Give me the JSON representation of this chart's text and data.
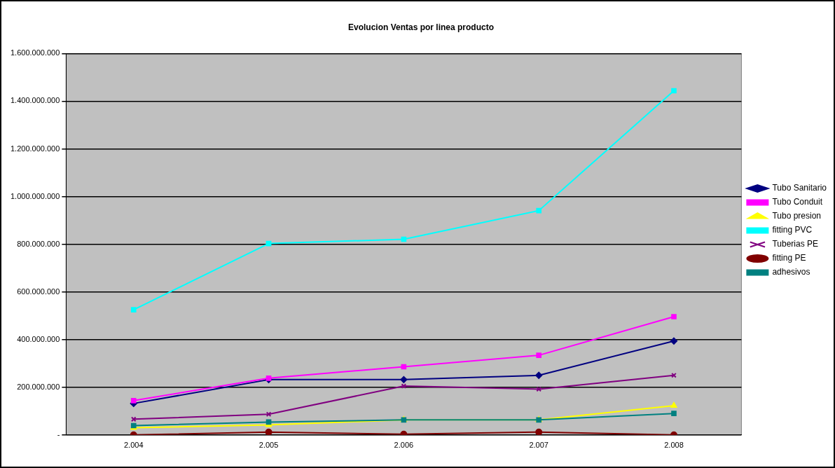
{
  "chart_data": {
    "type": "line",
    "title": "Evolucion Ventas por linea producto",
    "categories": [
      "2.004",
      "2.005",
      "2.006",
      "2.007",
      "2.008"
    ],
    "series": [
      {
        "name": "Tubo Sanitario",
        "color": "#000080",
        "marker": "diamond",
        "values": [
          132000000,
          232000000,
          232000000,
          250000000,
          394000000
        ]
      },
      {
        "name": "Tubo Conduit",
        "color": "#ff00ff",
        "marker": "square",
        "values": [
          144000000,
          238000000,
          286000000,
          334000000,
          496000000
        ]
      },
      {
        "name": "Tubo presion",
        "color": "#ffff00",
        "marker": "triangle",
        "values": [
          30000000,
          42000000,
          63000000,
          63000000,
          123000000
        ]
      },
      {
        "name": "fitting PVC",
        "color": "#00ffff",
        "marker": "square",
        "values": [
          525000000,
          803000000,
          821000000,
          941000000,
          1444000000
        ]
      },
      {
        "name": "Tuberias PE",
        "color": "#800080",
        "marker": "cross",
        "values": [
          66000000,
          87000000,
          205000000,
          192000000,
          250000000
        ]
      },
      {
        "name": "fitting PE",
        "color": "#800000",
        "marker": "circle",
        "values": [
          0,
          12000000,
          3000000,
          12000000,
          0
        ]
      },
      {
        "name": "adhesivos",
        "color": "#008080",
        "marker": "square",
        "values": [
          39000000,
          54000000,
          63000000,
          63000000,
          90000000
        ]
      }
    ],
    "ylim": [
      0,
      1600000000
    ],
    "yticks": [
      {
        "value": 0,
        "label": "-"
      },
      {
        "value": 200000000,
        "label": "200.000.000"
      },
      {
        "value": 400000000,
        "label": "400.000.000"
      },
      {
        "value": 600000000,
        "label": "600.000.000"
      },
      {
        "value": 800000000,
        "label": "800.000.000"
      },
      {
        "value": 1000000000,
        "label": "1.000.000.000"
      },
      {
        "value": 1200000000,
        "label": "1.200.000.000"
      },
      {
        "value": 1400000000,
        "label": "1.400.000.000"
      },
      {
        "value": 1600000000,
        "label": "1.600.000.000"
      }
    ],
    "grid": "y",
    "legend": "right",
    "line_style": "solid"
  }
}
